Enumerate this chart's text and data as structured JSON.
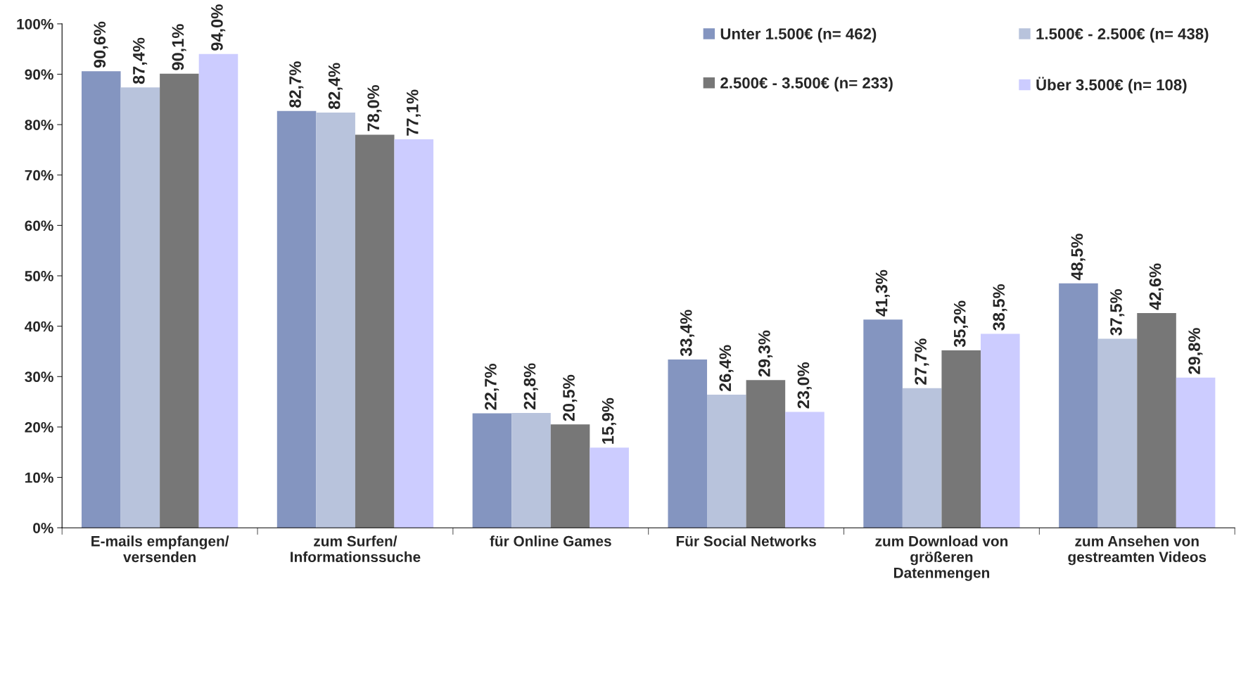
{
  "chart_data": {
    "type": "bar",
    "categories": [
      "E-mails empfangen/\nversenden",
      "zum Surfen/\nInformationssuche",
      "für Online Games",
      "Für Social Networks",
      "zum Download von\ngrößeren\nDatenmengen",
      "zum Ansehen von\ngestreamten Videos"
    ],
    "series": [
      {
        "name": "Unter 1.500€ (n= 462)",
        "color": "#8495c0",
        "values": [
          90.6,
          82.7,
          22.7,
          33.4,
          41.3,
          48.5
        ],
        "value_labels": [
          "90,6%",
          "82,7%",
          "22,7%",
          "33,4%",
          "41,3%",
          "48,5%"
        ]
      },
      {
        "name": "1.500€ - 2.500€ (n= 438)",
        "color": "#b8c3dc",
        "values": [
          87.4,
          82.4,
          22.8,
          26.4,
          27.7,
          37.5
        ],
        "value_labels": [
          "87,4%",
          "82,4%",
          "22,8%",
          "26,4%",
          "27,7%",
          "37,5%"
        ]
      },
      {
        "name": "2.500€ - 3.500€ (n= 233)",
        "color": "#777777",
        "values": [
          90.1,
          78.0,
          20.5,
          29.3,
          35.2,
          42.6
        ],
        "value_labels": [
          "90,1%",
          "78,0%",
          "20,5%",
          "29,3%",
          "35,2%",
          "42,6%"
        ]
      },
      {
        "name": "Über 3.500€ (n= 108)",
        "color": "#ccccff",
        "values": [
          94.0,
          77.1,
          15.9,
          23.0,
          38.5,
          29.8
        ],
        "value_labels": [
          "94,0%",
          "77,1%",
          "15,9%",
          "23,0%",
          "38,5%",
          "29,8%"
        ]
      }
    ],
    "ylim": [
      0,
      100
    ],
    "yticks": [
      {
        "value": 0,
        "label": "0%"
      },
      {
        "value": 10,
        "label": "10%"
      },
      {
        "value": 20,
        "label": "20%"
      },
      {
        "value": 30,
        "label": "30%"
      },
      {
        "value": 40,
        "label": "40%"
      },
      {
        "value": 50,
        "label": "50%"
      },
      {
        "value": 60,
        "label": "60%"
      },
      {
        "value": 70,
        "label": "70%"
      },
      {
        "value": 80,
        "label": "80%"
      },
      {
        "value": 90,
        "label": "90%"
      },
      {
        "value": 100,
        "label": "100%"
      }
    ],
    "grid": false,
    "legend": "top right"
  }
}
